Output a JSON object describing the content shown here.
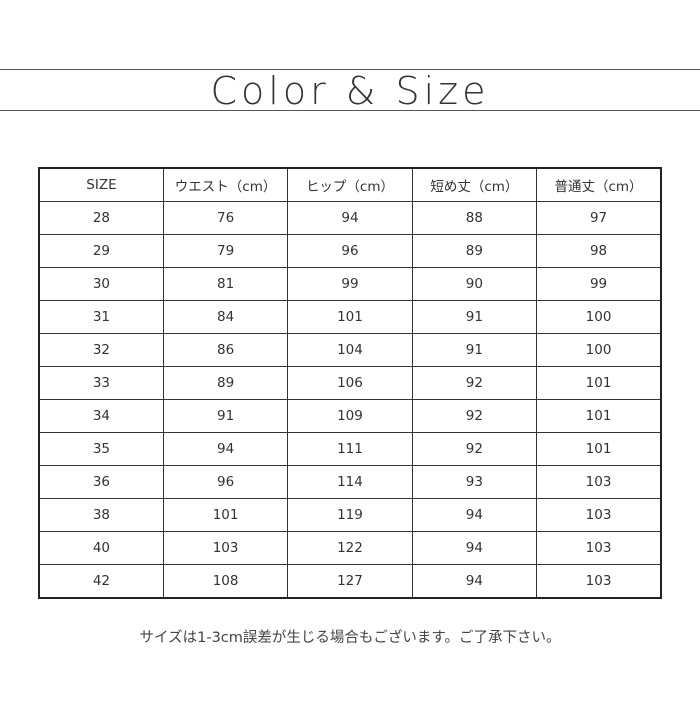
{
  "title": "Color & Size",
  "table": {
    "headers": [
      "SIZE",
      "ウエスト（cm）",
      "ヒップ（cm）",
      "短め丈（cm）",
      "普通丈（cm）"
    ],
    "rows": [
      [
        "28",
        "76",
        "94",
        "88",
        "97"
      ],
      [
        "29",
        "79",
        "96",
        "89",
        "98"
      ],
      [
        "30",
        "81",
        "99",
        "90",
        "99"
      ],
      [
        "31",
        "84",
        "101",
        "91",
        "100"
      ],
      [
        "32",
        "86",
        "104",
        "91",
        "100"
      ],
      [
        "33",
        "89",
        "106",
        "92",
        "101"
      ],
      [
        "34",
        "91",
        "109",
        "92",
        "101"
      ],
      [
        "35",
        "94",
        "111",
        "92",
        "101"
      ],
      [
        "36",
        "96",
        "114",
        "93",
        "103"
      ],
      [
        "38",
        "101",
        "119",
        "94",
        "103"
      ],
      [
        "40",
        "103",
        "122",
        "94",
        "103"
      ],
      [
        "42",
        "108",
        "127",
        "94",
        "103"
      ]
    ]
  },
  "note": "サイズは1-3cm誤差が生じる場合もございます。ご了承下さい。"
}
